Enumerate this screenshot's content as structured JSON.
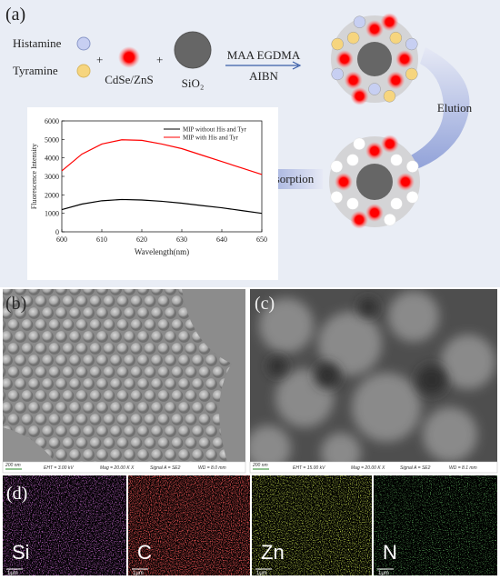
{
  "panel_a": {
    "label": "(a)",
    "histamine": "Histamine",
    "tyramine": "Tyramine",
    "plus_1": "+",
    "quantum_dot": "CdSe/ZnS",
    "plus_2": "+",
    "silica": "SiO₂",
    "reagents_top": "MAA EGDMA",
    "reagents_bottom": "AIBN",
    "elution": "Elution",
    "adsorption": "Adsorption"
  },
  "chart_data": {
    "type": "line",
    "x": [
      600,
      605,
      610,
      615,
      620,
      625,
      630,
      635,
      640,
      645,
      650
    ],
    "series": [
      {
        "name": "MIP without His and Tyr",
        "color": "#000000",
        "values": [
          1200,
          1500,
          1680,
          1750,
          1720,
          1650,
          1550,
          1420,
          1300,
          1150,
          1000
        ]
      },
      {
        "name": "MIP with His and Tyr",
        "color": "#ff0000",
        "values": [
          3300,
          4200,
          4750,
          4980,
          4950,
          4750,
          4500,
          4150,
          3800,
          3450,
          3100
        ]
      }
    ],
    "xlabel": "Wavelength(nm)",
    "ylabel": "Fluorescence Intensity",
    "xlim": [
      600,
      650
    ],
    "ylim": [
      0,
      6000
    ],
    "xticks": [
      600,
      610,
      620,
      630,
      640,
      650
    ],
    "yticks": [
      0,
      1000,
      2000,
      3000,
      4000,
      5000,
      6000
    ],
    "legend": "upper right"
  },
  "panel_b": {
    "label": "(b)",
    "scale_bar": "200 nm",
    "eht": "EHT = 3.00 kV",
    "mag": "Mag = 20.00 K X",
    "signal": "Signal A = SE2",
    "wd": "WD = 8.0 mm"
  },
  "panel_c": {
    "label": "(c)",
    "scale_bar": "200 nm",
    "eht": "EHT = 15.00 kV",
    "mag": "Mag = 20.00 K X",
    "signal": "Signal A = SE2",
    "wd": "WD = 8.1 mm"
  },
  "panel_d": {
    "label": "(d)",
    "maps": [
      {
        "element": "Si",
        "scale_bar": "1μm"
      },
      {
        "element": "C",
        "scale_bar": "1μm"
      },
      {
        "element": "Zn",
        "scale_bar": "1μm"
      },
      {
        "element": "N",
        "scale_bar": "1μm"
      }
    ]
  }
}
